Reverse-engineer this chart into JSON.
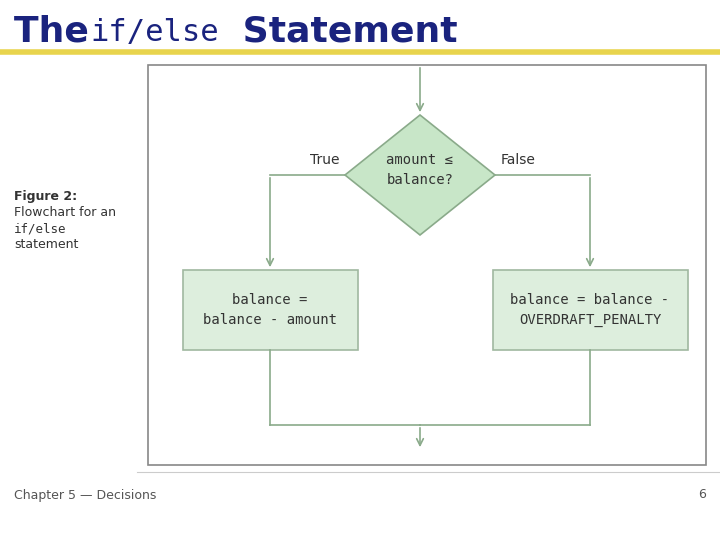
{
  "title_normal1": "The ",
  "title_code": "if/else",
  "title_normal2": " Statement",
  "title_color": "#1a237e",
  "title_fontsize": 26,
  "title_code_fontsize": 22,
  "bg_color": "#ffffff",
  "yellow_line_color": "#e8d44d",
  "footer_text": "Chapter 5 — Decisions",
  "footer_number": "6",
  "box_fill": "#ddeedd",
  "box_border": "#a0b8a0",
  "diamond_fill": "#c8e6c8",
  "diamond_border": "#8aaa8a",
  "arrow_color": "#8aaa8a",
  "text_color": "#333333",
  "mono_font": "monospace",
  "sans_font": "DejaVu Sans",
  "diagram_bg": "#ffffff",
  "diagram_border": "#888888",
  "condition_text": "amount ≤\nbalance?",
  "true_box_text": "balance =\nbalance - amount",
  "false_box_text": "balance = balance -\nOVERDRAFT_PENALTY",
  "true_label": "True",
  "false_label": "False",
  "caption_line1": "Figure 2:",
  "caption_line2": "Flowchart for an",
  "caption_line3": "if/else",
  "caption_line4": "statement"
}
